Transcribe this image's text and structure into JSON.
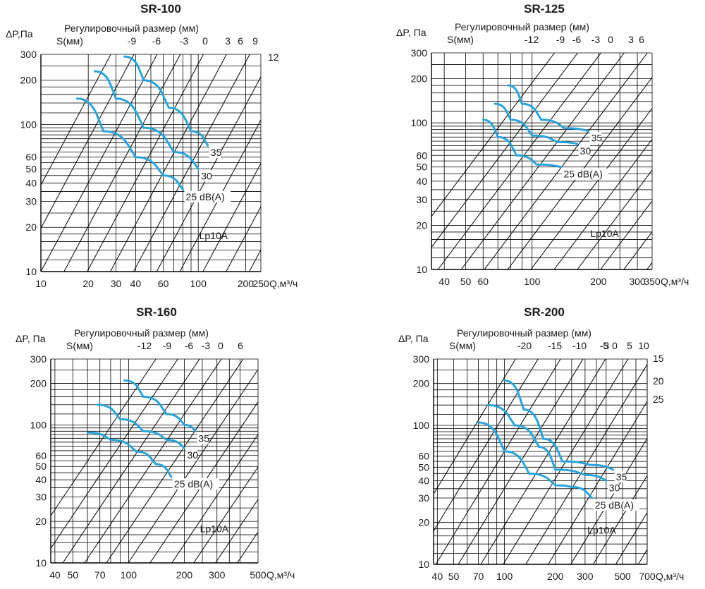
{
  "chart_data": [
    {
      "type": "line",
      "title": "SR-100",
      "ylabel": "ΔP,Па",
      "xlabel": "Q,м³/ч",
      "top_label": "Регулировочный размер (мм)",
      "s_label": "S(мм)",
      "right_label": "12",
      "lp_label": "Lp10A",
      "xlim": [
        10,
        250
      ],
      "ylim": [
        10,
        300
      ],
      "x_ticks": [
        10,
        20,
        30,
        40,
        60,
        100,
        200,
        250
      ],
      "x_tick_labels": [
        "10",
        "20",
        "30",
        "40",
        "60",
        "100",
        "200",
        "250"
      ],
      "y_ticks": [
        10,
        20,
        30,
        40,
        50,
        60,
        100,
        200,
        300
      ],
      "y_tick_labels": [
        "10",
        "20",
        "30",
        "40",
        "50",
        "60",
        "100",
        "200",
        "300"
      ],
      "s_values": [
        "-9",
        "-6",
        "-3",
        "0",
        "3",
        "6",
        "9"
      ],
      "series": [
        {
          "name": "25 dB(A)",
          "x": [
            17,
            25,
            40,
            60,
            80
          ],
          "y": [
            150,
            90,
            60,
            45,
            36
          ]
        },
        {
          "name": "30",
          "x": [
            22,
            30,
            45,
            70,
            100
          ],
          "y": [
            230,
            150,
            95,
            65,
            50
          ]
        },
        {
          "name": "35",
          "x": [
            34,
            45,
            65,
            90,
            115
          ],
          "y": [
            290,
            200,
            130,
            90,
            72
          ]
        }
      ]
    },
    {
      "type": "line",
      "title": "SR-125",
      "ylabel": "ΔP, Па",
      "xlabel": "Q,м³/ч",
      "top_label": "Регулировочный размер (мм)",
      "s_label": "S(мм)",
      "lp_label": "Lp10A",
      "xlim": [
        35,
        350
      ],
      "ylim": [
        10,
        300
      ],
      "x_ticks": [
        40,
        50,
        60,
        100,
        200,
        300,
        350
      ],
      "x_tick_labels": [
        "40",
        "50",
        "60",
        "100",
        "200",
        "300",
        "350"
      ],
      "y_ticks": [
        10,
        20,
        30,
        40,
        50,
        60,
        100,
        200,
        300
      ],
      "y_tick_labels": [
        "10",
        "20",
        "30",
        "40",
        "50",
        "60",
        "100",
        "200",
        "300"
      ],
      "s_values": [
        "-12",
        "-9",
        "-6",
        "-3",
        "0",
        "3",
        "6"
      ],
      "series": [
        {
          "name": "25 dB(A)",
          "x": [
            60,
            70,
            85,
            105,
            135
          ],
          "y": [
            105,
            80,
            60,
            52,
            50
          ]
        },
        {
          "name": "30",
          "x": [
            68,
            80,
            100,
            130,
            160
          ],
          "y": [
            135,
            105,
            82,
            74,
            72
          ]
        },
        {
          "name": "35",
          "x": [
            78,
            90,
            110,
            140,
            180
          ],
          "y": [
            180,
            135,
            105,
            92,
            88
          ]
        }
      ]
    },
    {
      "type": "line",
      "title": "SR-160",
      "ylabel": "ΔP, Па",
      "xlabel": "Q,м³/ч",
      "top_label": "Регулировочный размер (мм)",
      "s_label": "S(мм)",
      "lp_label": "Lp10A",
      "xlim": [
        38,
        500
      ],
      "ylim": [
        10,
        300
      ],
      "x_ticks": [
        40,
        50,
        70,
        100,
        200,
        300,
        500
      ],
      "x_tick_labels": [
        "40",
        "50",
        "70",
        "100",
        "200",
        "300",
        "500"
      ],
      "y_ticks": [
        10,
        20,
        30,
        40,
        50,
        60,
        100,
        200,
        300
      ],
      "y_tick_labels": [
        "10",
        "20",
        "30",
        "40",
        "50",
        "60",
        "100",
        "200",
        "300"
      ],
      "s_values": [
        "-12",
        "-9",
        "-6",
        "-3",
        "0",
        "6"
      ],
      "series": [
        {
          "name": "25 dB(A)",
          "x": [
            60,
            80,
            110,
            140,
            170
          ],
          "y": [
            88,
            78,
            64,
            52,
            42
          ]
        },
        {
          "name": "30",
          "x": [
            68,
            90,
            120,
            160,
            200
          ],
          "y": [
            140,
            110,
            90,
            78,
            68
          ]
        },
        {
          "name": "35",
          "x": [
            95,
            120,
            160,
            200,
            230
          ],
          "y": [
            210,
            160,
            120,
            100,
            90
          ]
        }
      ]
    },
    {
      "type": "line",
      "title": "SR-200",
      "ylabel": "ΔP, Па",
      "xlabel": "Q,м³/ч",
      "top_label": "Регулировочный размер (мм)",
      "s_label": "S(мм)",
      "right_labels": [
        "15",
        "20",
        "25"
      ],
      "lp_label": "Lp10A",
      "xlim": [
        38,
        700
      ],
      "ylim": [
        10,
        300
      ],
      "x_ticks": [
        40,
        50,
        70,
        100,
        200,
        300,
        500,
        700
      ],
      "x_tick_labels": [
        "40",
        "50",
        "70",
        "100",
        "200",
        "300",
        "500",
        "700"
      ],
      "y_ticks": [
        10,
        20,
        30,
        40,
        50,
        60,
        100,
        200,
        300
      ],
      "y_tick_labels": [
        "10",
        "20",
        "30",
        "40",
        "50",
        "60",
        "100",
        "200",
        "300"
      ],
      "s_values": [
        "-20",
        "-15",
        "-10",
        "-5",
        "-3",
        "0",
        "5",
        "10"
      ],
      "series": [
        {
          "name": "25 dB(A)",
          "x": [
            70,
            100,
            140,
            200,
            250,
            330
          ],
          "y": [
            105,
            65,
            45,
            37,
            36,
            30
          ]
        },
        {
          "name": "30",
          "x": [
            80,
            115,
            160,
            200,
            300,
            400
          ],
          "y": [
            140,
            100,
            70,
            48,
            44,
            40
          ]
        },
        {
          "name": "35",
          "x": [
            100,
            130,
            170,
            220,
            320,
            440
          ],
          "y": [
            210,
            130,
            80,
            55,
            52,
            48
          ]
        }
      ]
    }
  ]
}
